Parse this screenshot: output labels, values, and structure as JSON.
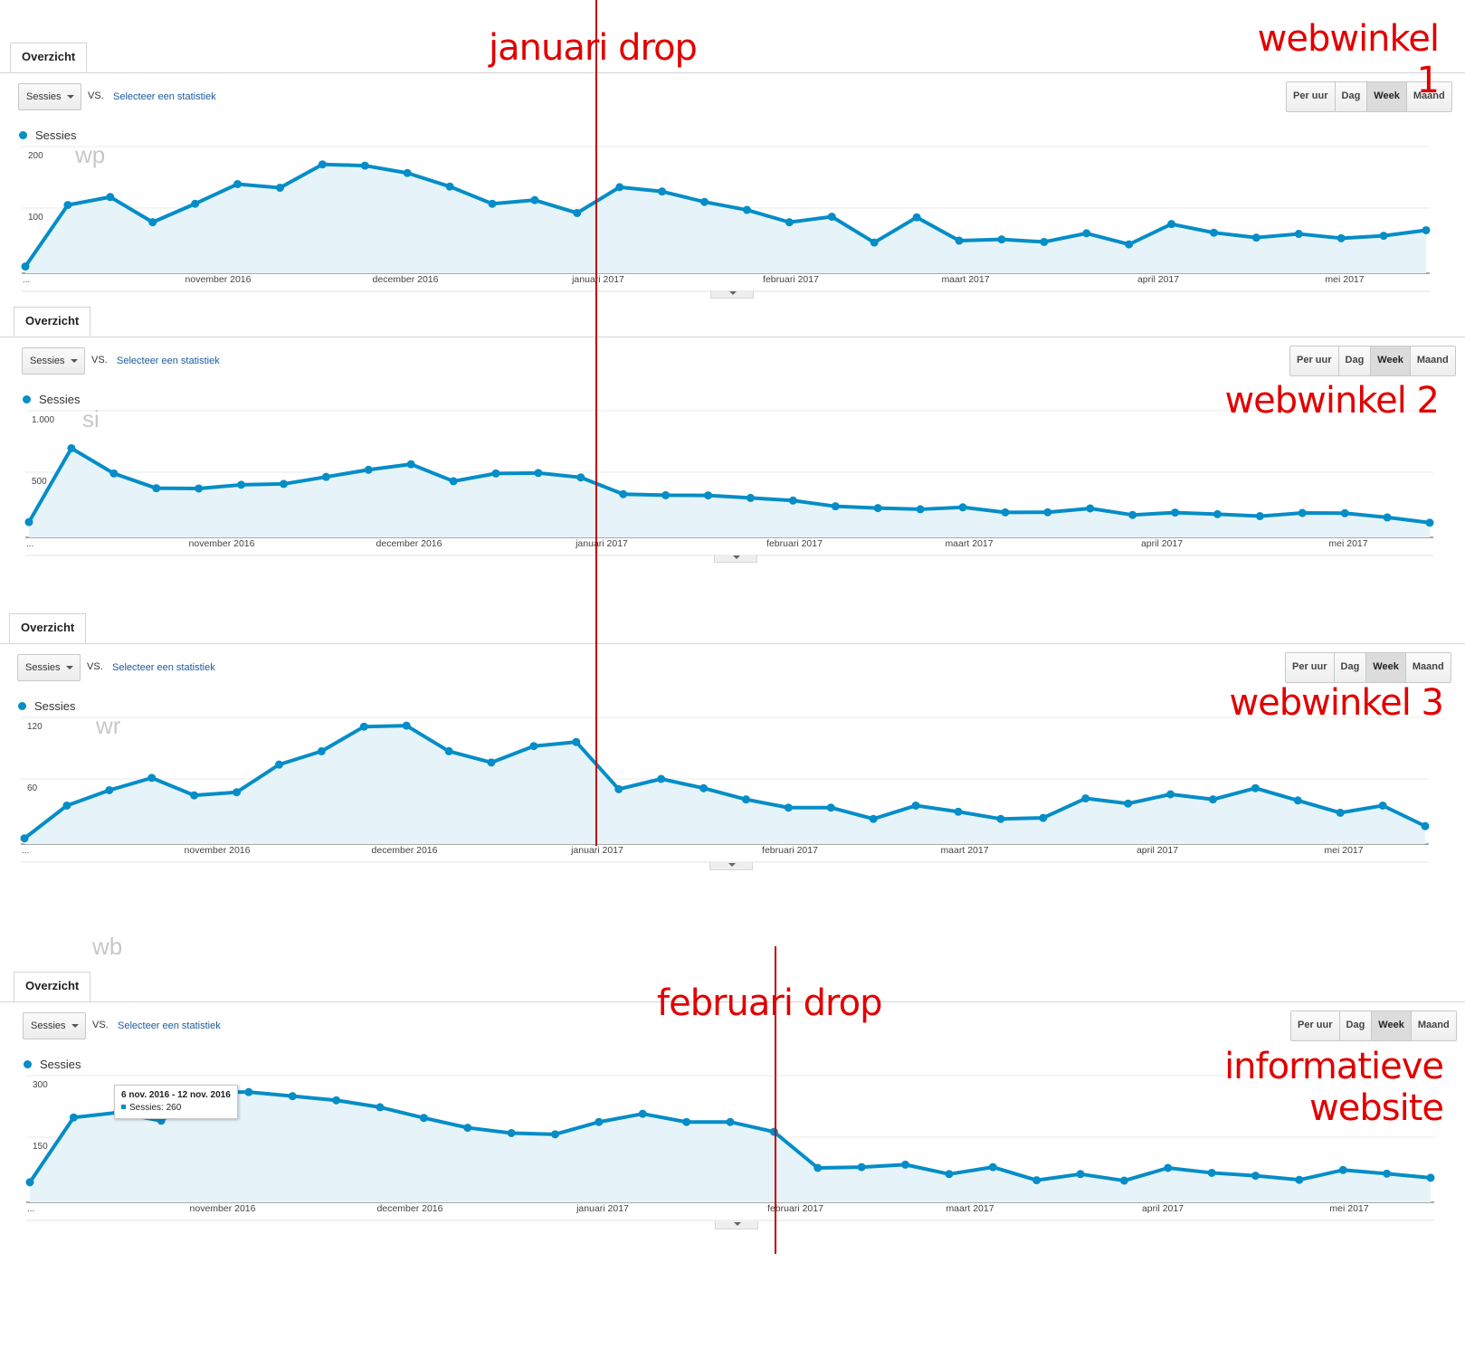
{
  "ui": {
    "tab_label": "Overzicht",
    "metric_select": "Sessies",
    "vs_label": "VS.",
    "compare_link": "Selecteer een statistiek",
    "period_buttons": [
      "Per uur",
      "Dag",
      "Week",
      "Maand"
    ],
    "active_period": "Week",
    "legend_label": "Sessies",
    "series_color": "#058dc7",
    "fill_color": "#e6f4fa",
    "annotation_color": "#e10000"
  },
  "annotations": {
    "jan_drop": "januari drop",
    "feb_drop": "februari drop",
    "shop1": "webwinkel 1",
    "shop2": "webwinkel 2",
    "shop3": "webwinkel 3",
    "info_line1": "informatieve",
    "info_line2": "website"
  },
  "tooltip": {
    "title": "6 nov. 2016 - 12 nov. 2016",
    "value_line": "Sessies: 260"
  },
  "chart_data": [
    {
      "type": "area",
      "title": "webwinkel 1",
      "watermark": "wp",
      "series": [
        {
          "name": "Sessies",
          "values": [
            5,
            105,
            118,
            77,
            107,
            139,
            133,
            171,
            169,
            157,
            135,
            107,
            113,
            92,
            134,
            127,
            110,
            97,
            77,
            86,
            44,
            85,
            47,
            49,
            45,
            59,
            41,
            74,
            60,
            52,
            58,
            51,
            55,
            64
          ]
        }
      ],
      "ylim": [
        0,
        200
      ],
      "y_ticks": [
        "100",
        "200"
      ],
      "x_start_label": "...",
      "x_tick_labels": [
        "november 2016",
        "december 2016",
        "januari 2017",
        "februari 2017",
        "maart 2017",
        "april 2017",
        "mei 2017"
      ]
    },
    {
      "type": "area",
      "title": "webwinkel 2",
      "watermark": "si",
      "series": [
        {
          "name": "Sessies",
          "values": [
            95,
            695,
            490,
            370,
            368,
            398,
            405,
            462,
            520,
            565,
            427,
            490,
            494,
            458,
            322,
            313,
            312,
            291,
            270,
            223,
            209,
            199,
            215,
            174,
            175,
            206,
            153,
            172,
            159,
            143,
            169,
            167,
            133,
            90
          ]
        }
      ],
      "ylim": [
        0,
        1000
      ],
      "y_ticks": [
        "500",
        "1.000"
      ],
      "x_start_label": "...",
      "x_tick_labels": [
        "november 2016",
        "december 2016",
        "januari 2017",
        "februari 2017",
        "maart 2017",
        "april 2017",
        "mei 2017"
      ]
    },
    {
      "type": "area",
      "title": "webwinkel 3",
      "watermark": "wr",
      "series": [
        {
          "name": "Sessies",
          "values": [
            2,
            34,
            49,
            61,
            44,
            47,
            74,
            87,
            111,
            112,
            87,
            76,
            92,
            96,
            50,
            60,
            51,
            40,
            32,
            32,
            21,
            34,
            28,
            21,
            22,
            41,
            36,
            45,
            40,
            51,
            39,
            27,
            34,
            14
          ]
        }
      ],
      "ylim": [
        0,
        120
      ],
      "y_ticks": [
        "60",
        "120"
      ],
      "x_start_label": "...",
      "x_tick_labels": [
        "november 2016",
        "december 2016",
        "januari 2017",
        "februari 2017",
        "maart 2017",
        "april 2017",
        "mei 2017"
      ]
    },
    {
      "type": "area",
      "title": "informatieve website",
      "watermark": "wb",
      "series": [
        {
          "name": "Sessies",
          "values": [
            40,
            198,
            210,
            190,
            260,
            260,
            250,
            240,
            223,
            197,
            173,
            160,
            157,
            187,
            207,
            187,
            187,
            163,
            75,
            77,
            83,
            60,
            77,
            45,
            60,
            44,
            75,
            63,
            56,
            46,
            70,
            61,
            51
          ]
        }
      ],
      "ylim": [
        0,
        300
      ],
      "y_ticks": [
        "150",
        "300"
      ],
      "x_start_label": "...",
      "x_tick_labels": [
        "november 2016",
        "december 2016",
        "januari 2017",
        "februari 2017",
        "maart 2017",
        "april 2017",
        "mei 2017"
      ]
    }
  ]
}
